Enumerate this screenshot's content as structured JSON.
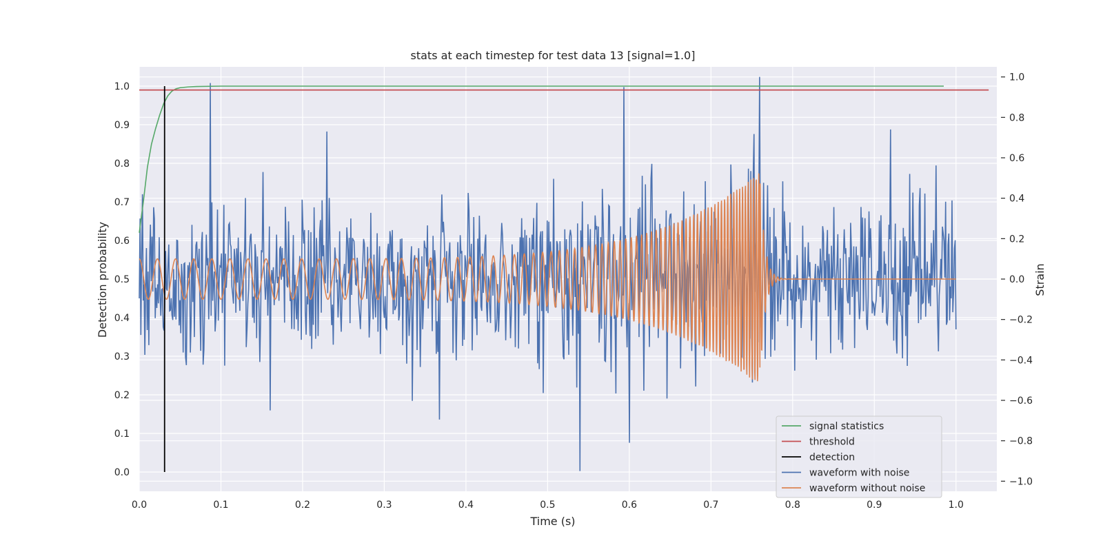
{
  "chart_data": {
    "type": "line",
    "title": "stats at each timestep for test data 13 [signal=1.0]",
    "xlabel": "Time (s)",
    "ylabel": "Detection probability",
    "y2label": "Strain",
    "xlim": [
      0.0,
      1.05
    ],
    "ylim": [
      -0.05,
      1.05
    ],
    "y2lim": [
      -1.05,
      1.05
    ],
    "xticks": [
      0.0,
      0.1,
      0.2,
      0.3,
      0.4,
      0.5,
      0.6,
      0.7,
      0.8,
      0.9,
      1.0
    ],
    "xtick_labels": [
      "0.0",
      "0.1",
      "0.2",
      "0.3",
      "0.4",
      "0.5",
      "0.6",
      "0.7",
      "0.8",
      "0.9",
      "1.0"
    ],
    "yticks": [
      0.0,
      0.1,
      0.2,
      0.3,
      0.4,
      0.5,
      0.6,
      0.7,
      0.8,
      0.9,
      1.0
    ],
    "ytick_labels": [
      "0.0",
      "0.1",
      "0.2",
      "0.3",
      "0.4",
      "0.5",
      "0.6",
      "0.7",
      "0.8",
      "0.9",
      "1.0"
    ],
    "y2ticks": [
      -1.0,
      -0.8,
      -0.6,
      -0.4,
      -0.2,
      0.0,
      0.2,
      0.4,
      0.6,
      0.8,
      1.0
    ],
    "y2tick_labels": [
      "−1.0",
      "−0.8",
      "−0.6",
      "−0.4",
      "−0.2",
      "0.0",
      "0.2",
      "0.4",
      "0.6",
      "0.8",
      "1.0"
    ],
    "grid": true,
    "legend_position": "lower-right",
    "colors": {
      "signal_statistics": "#55a868",
      "threshold": "#c44e52",
      "detection": "#000000",
      "waveform_noise": "#4c72b0",
      "waveform_clean": "#dd8452",
      "axes_bg": "#eaeaf2",
      "grid": "#ffffff"
    },
    "signal_statistics": {
      "name": "signal statistics",
      "axis": "left",
      "x": [
        0.0,
        0.005,
        0.01,
        0.015,
        0.02,
        0.025,
        0.03,
        0.035,
        0.04,
        0.045,
        0.05,
        0.06,
        0.07,
        0.1,
        0.3,
        0.5,
        0.7,
        0.9,
        0.985
      ],
      "y": [
        0.62,
        0.7,
        0.79,
        0.85,
        0.89,
        0.925,
        0.955,
        0.975,
        0.987,
        0.993,
        0.996,
        0.998,
        0.999,
        1.0,
        1.0,
        1.0,
        1.0,
        1.0,
        1.0
      ]
    },
    "threshold": {
      "name": "threshold",
      "axis": "left",
      "value": 0.99,
      "x_range": [
        0.0,
        1.04
      ]
    },
    "detection": {
      "name": "detection",
      "axis": "left",
      "x": 0.031,
      "y_range": [
        0.0,
        1.0
      ]
    },
    "waveform_noise": {
      "name": "waveform with noise",
      "axis": "right",
      "x_range": [
        0.0,
        1.0
      ],
      "num_points": 1024,
      "std": 0.2,
      "peaks": [
        {
          "x": 0.087,
          "y": 0.97
        },
        {
          "x": 0.23,
          "y": 0.73
        },
        {
          "x": 0.54,
          "y": -0.95
        },
        {
          "x": 0.593,
          "y": 0.95
        },
        {
          "x": 0.6,
          "y": -0.81
        },
        {
          "x": 0.76,
          "y": 1.0
        },
        {
          "x": 0.92,
          "y": 0.74
        },
        {
          "x": 0.16,
          "y": -0.65
        }
      ]
    },
    "waveform_clean": {
      "name": "waveform without noise",
      "axis": "right",
      "type": "chirp",
      "x_range": [
        0.0,
        1.0
      ],
      "merger_time": 0.76,
      "amplitude_start": 0.1,
      "amplitude_peak": 0.53,
      "freq_start_hz": 45,
      "freq_end_hz": 200
    },
    "legend": [
      {
        "key": "signal_statistics",
        "label": "signal statistics"
      },
      {
        "key": "threshold",
        "label": "threshold"
      },
      {
        "key": "detection",
        "label": "detection"
      },
      {
        "key": "waveform_noise",
        "label": "waveform with noise"
      },
      {
        "key": "waveform_clean",
        "label": "waveform without noise"
      }
    ]
  }
}
